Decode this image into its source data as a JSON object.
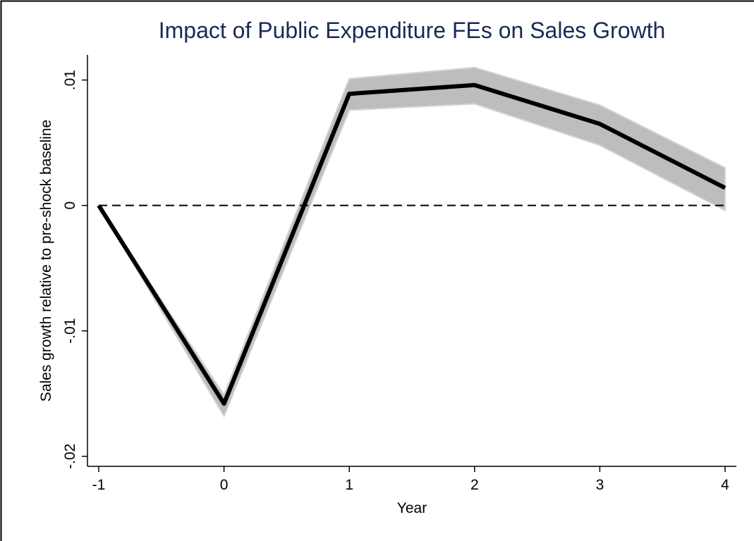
{
  "chart_data": {
    "type": "line",
    "title": "Impact of Public Expenditure FEs on Sales Growth",
    "xlabel": "Year",
    "ylabel": "Sales growth relative to pre-shock baseline",
    "x": [
      -1,
      0,
      1,
      2,
      3,
      4
    ],
    "values": [
      0,
      -0.0158,
      0.0089,
      0.0096,
      0.0065,
      0.0014
    ],
    "ci_upper": [
      0,
      -0.0151,
      0.0101,
      0.011,
      0.008,
      0.003
    ],
    "ci_lower": [
      0,
      -0.0168,
      0.0076,
      0.0081,
      0.0048,
      -0.0004
    ],
    "color": "#000000",
    "band_color": "#bdbdbd",
    "hline": 0,
    "xlim": [
      -1.09,
      4.09
    ],
    "xticks": [
      -1,
      0,
      1,
      2,
      3,
      4
    ],
    "ylim": [
      -0.0208,
      0.012
    ],
    "yticks": [
      {
        "value": -0.02,
        "label": "-.02"
      },
      {
        "value": -0.01,
        "label": "-.01"
      },
      0,
      {
        "value": 0.01,
        "label": ".01"
      }
    ]
  }
}
